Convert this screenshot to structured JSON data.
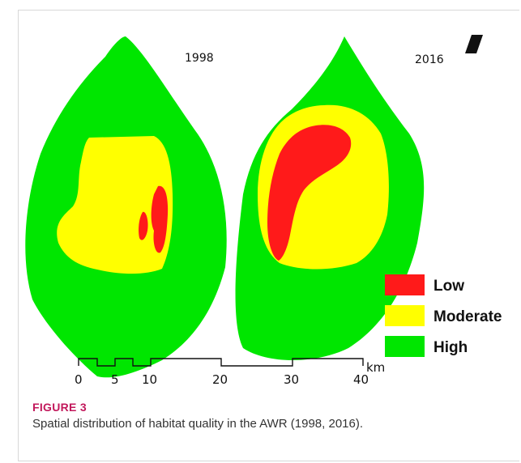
{
  "panels": [
    {
      "year": "1998"
    },
    {
      "year": "2016"
    }
  ],
  "legend": [
    {
      "label": "Low",
      "color": "#ff1a1a"
    },
    {
      "label": "Moderate",
      "color": "#ffff00"
    },
    {
      "label": "High",
      "color": "#00e600"
    }
  ],
  "scale_bar": {
    "ticks": [
      "0",
      "5",
      "10",
      "20",
      "30",
      "40"
    ],
    "unit": "km"
  },
  "figure": {
    "label": "FIGURE 3",
    "caption": "Spatial distribution of habitat quality in the AWR (1998, 2016)."
  }
}
